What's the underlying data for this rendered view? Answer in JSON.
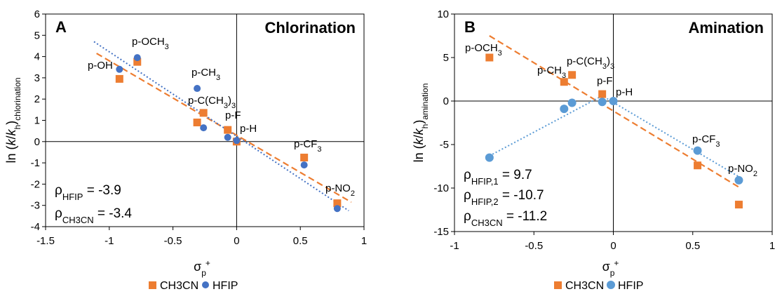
{
  "chart_data": [
    {
      "type": "scatter",
      "panel_letter": "A",
      "title": "Chlorination",
      "xlabel_main": "σ",
      "xlabel_sub": "p",
      "xlabel_sup": "+",
      "ylabel_pre": "ln (",
      "ylabel_k": "k",
      "ylabel_slash": "/",
      "ylabel_kh": "k",
      "ylabel_h": "h",
      "ylabel_close": ")",
      "ylabel_sub": "chlorination",
      "xlim": [
        -1.5,
        1
      ],
      "ylim": [
        -4,
        6
      ],
      "x_ticks": [
        "-1.5",
        "-1",
        "-0.5",
        "0",
        "0.5",
        "1"
      ],
      "y_ticks": [
        "6",
        "5",
        "4",
        "3",
        "2",
        "1",
        "0",
        "-1",
        "-2",
        "-3",
        "-4"
      ],
      "series": [
        {
          "name": "CH3CN",
          "color": "#ED7D31",
          "marker": "square",
          "points": [
            [
              -0.92,
              2.95
            ],
            [
              -0.78,
              3.75
            ],
            [
              -0.31,
              0.9
            ],
            [
              -0.26,
              1.35
            ],
            [
              -0.07,
              0.55
            ],
            [
              0,
              0
            ],
            [
              0.53,
              -0.75
            ],
            [
              0.79,
              -2.9
            ]
          ],
          "fit": [
            [
              -1.1,
              4.15
            ],
            [
              0.9,
              -2.85
            ]
          ]
        },
        {
          "name": "HFIP",
          "color": "#4472C4",
          "marker": "circle",
          "points": [
            [
              -0.92,
              3.4
            ],
            [
              -0.78,
              3.95
            ],
            [
              -0.31,
              2.5
            ],
            [
              -0.26,
              0.65
            ],
            [
              -0.07,
              0.2
            ],
            [
              0,
              0.05
            ],
            [
              0.53,
              -1.1
            ],
            [
              0.79,
              -3.15
            ]
          ],
          "fit": [
            [
              -1.12,
              4.7
            ],
            [
              0.88,
              -3.25
            ]
          ]
        }
      ],
      "point_labels": [
        {
          "main": "p-OH",
          "sub": ""
        },
        {
          "main": "p-OCH",
          "sub": "3"
        },
        {
          "main": "p-CH",
          "sub": "3"
        },
        {
          "main": "p-C(CH",
          "sub": "3",
          "tail": ")",
          "tail_sub": "3"
        },
        {
          "main": "p-F",
          "sub": ""
        },
        {
          "main": "p-H",
          "sub": ""
        },
        {
          "main": "p-CF",
          "sub": "3"
        },
        {
          "main": "p-NO",
          "sub": "2"
        }
      ],
      "annotations": [
        {
          "rho_sub": "HFIP",
          "value": " = -3.9"
        },
        {
          "rho_sub": "CH3CN",
          "value": " = -3.4"
        }
      ],
      "legend": [
        "CH3CN",
        "HFIP"
      ],
      "legend_position": "bottom",
      "grid": false
    },
    {
      "type": "scatter",
      "panel_letter": "B",
      "title": "Amination",
      "xlabel_main": "σ",
      "xlabel_sub": "p",
      "xlabel_sup": "+",
      "ylabel_pre": "ln (",
      "ylabel_k": "k",
      "ylabel_slash": "/",
      "ylabel_kh": "k",
      "ylabel_h": "h",
      "ylabel_close": ")",
      "ylabel_sub": "amination",
      "xlim": [
        -1,
        1
      ],
      "ylim": [
        -15,
        10
      ],
      "x_ticks": [
        "-1",
        "-0.5",
        "0",
        "0.5",
        "1"
      ],
      "y_ticks": [
        "10",
        "5",
        "0",
        "-5",
        "-10",
        "-15"
      ],
      "series": [
        {
          "name": "CH3CN",
          "color": "#ED7D31",
          "marker": "square",
          "points": [
            [
              -0.78,
              5.0
            ],
            [
              -0.31,
              2.2
            ],
            [
              -0.26,
              3.0
            ],
            [
              -0.07,
              0.8
            ],
            [
              0.53,
              -7.4
            ],
            [
              0.79,
              -11.9
            ]
          ],
          "fit": [
            [
              -0.78,
              7.5
            ],
            [
              0.8,
              -10.0
            ]
          ]
        },
        {
          "name": "HFIP",
          "color": "#5B9BD5",
          "marker": "circle",
          "points": [
            [
              -0.78,
              -6.5
            ],
            [
              -0.31,
              -0.9
            ],
            [
              -0.26,
              -0.2
            ],
            [
              -0.07,
              -0.1
            ],
            [
              0,
              0
            ],
            [
              0.53,
              -5.7
            ],
            [
              0.79,
              -9.1
            ]
          ],
          "fit": [
            [
              -0.78,
              -6.3
            ],
            [
              -0.07,
              0.6
            ],
            [
              0.8,
              -8.8
            ]
          ]
        }
      ],
      "point_labels": [
        {
          "main": "p-OCH",
          "sub": "3"
        },
        {
          "main": "p-CH",
          "sub": "3"
        },
        {
          "main": "p-C(CH",
          "sub": "3",
          "tail": ")",
          "tail_sub": "3"
        },
        {
          "main": "p-F",
          "sub": ""
        },
        {
          "main": "p-H",
          "sub": ""
        },
        {
          "main": "p-CF",
          "sub": "3"
        },
        {
          "main": "p-NO",
          "sub": "2"
        }
      ],
      "annotations": [
        {
          "rho_sub": "HFIP,1",
          "value": " = 9.7"
        },
        {
          "rho_sub": "HFIP,2",
          "value": " = -10.7"
        },
        {
          "rho_sub": "CH3CN",
          "value": " = -11.2"
        }
      ],
      "legend": [
        "CH3CN",
        "HFIP"
      ],
      "legend_position": "bottom",
      "grid": false
    }
  ]
}
